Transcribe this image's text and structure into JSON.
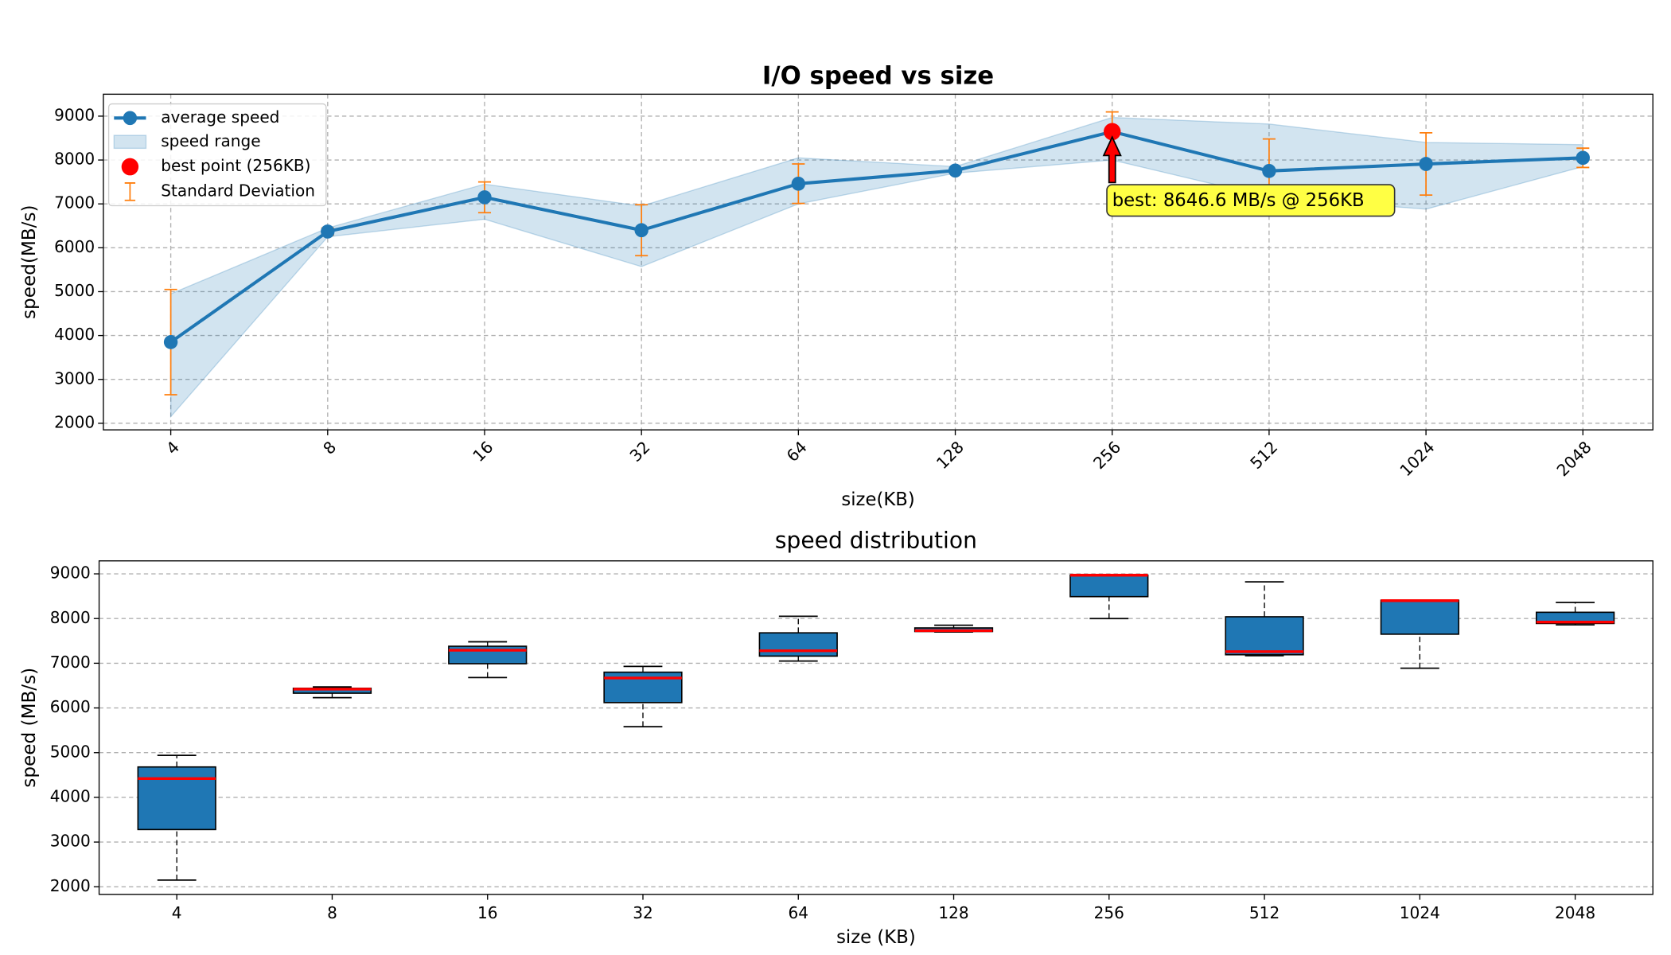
{
  "chart_data": [
    {
      "type": "line",
      "title": "I/O speed vs size",
      "x_label": "size(KB)",
      "y_label": "speed(MB/s)",
      "x": [
        4,
        8,
        16,
        32,
        64,
        128,
        256,
        512,
        1024,
        2048
      ],
      "xscale": "log2",
      "xlim": [
        2.97,
        2790
      ],
      "xticks": [
        4,
        8,
        16,
        32,
        64,
        128,
        256,
        512,
        1024,
        2048
      ],
      "ylim": [
        1850,
        9500
      ],
      "yticks": [
        2000,
        3000,
        4000,
        5000,
        6000,
        7000,
        8000,
        9000
      ],
      "grid": true,
      "legend": "upper left",
      "series": [
        {
          "name": "average speed",
          "color": "#1f77b4",
          "values": [
            3850,
            6370,
            7150,
            6400,
            7460,
            7760,
            8646.6,
            7750,
            7910,
            8050
          ]
        }
      ],
      "range": {
        "name": "speed range",
        "color": "#1f77b4",
        "lower": [
          2150,
          6250,
          6650,
          5570,
          7000,
          7700,
          8000,
          7150,
          6880,
          7850
        ],
        "upper": [
          4950,
          6450,
          7450,
          6950,
          8050,
          7850,
          8970,
          8820,
          8400,
          8350
        ]
      },
      "error": {
        "name": "Standard Deviation",
        "color": "#ff7f0e",
        "values": [
          1200,
          80,
          350,
          580,
          450,
          50,
          450,
          730,
          710,
          220
        ]
      },
      "best": {
        "name": "best point (256KB)",
        "color": "#ff0000",
        "x": 256,
        "y": 8646.6
      },
      "annotation": {
        "text": "best: 8646.6 MB/s @ 256KB",
        "color": "#ffff44"
      }
    },
    {
      "type": "box",
      "title": "speed distribution",
      "x_label": "size (KB)",
      "y_label": "speed (MB/s)",
      "categories": [
        "4",
        "8",
        "16",
        "32",
        "64",
        "128",
        "256",
        "512",
        "1024",
        "2048"
      ],
      "color": "#1f77b4",
      "median_color": "#ff0000",
      "ylim": [
        1830,
        9290
      ],
      "yticks": [
        2000,
        3000,
        4000,
        5000,
        6000,
        7000,
        8000,
        9000
      ],
      "grid": true,
      "boxes": [
        {
          "whislo": 2150,
          "q1": 3280,
          "med": 4420,
          "q3": 4680,
          "whishi": 4940
        },
        {
          "whislo": 6230,
          "q1": 6330,
          "med": 6420,
          "q3": 6440,
          "whishi": 6470
        },
        {
          "whislo": 6680,
          "q1": 6990,
          "med": 7290,
          "q3": 7380,
          "whishi": 7480
        },
        {
          "whislo": 5580,
          "q1": 6120,
          "med": 6670,
          "q3": 6800,
          "whishi": 6930
        },
        {
          "whislo": 7050,
          "q1": 7160,
          "med": 7280,
          "q3": 7680,
          "whishi": 8050
        },
        {
          "whislo": 7700,
          "q1": 7710,
          "med": 7730,
          "q3": 7790,
          "whishi": 7850
        },
        {
          "whislo": 8000,
          "q1": 8490,
          "med": 8970,
          "q3": 8970,
          "whishi": 8970
        },
        {
          "whislo": 7170,
          "q1": 7190,
          "med": 7260,
          "q3": 8040,
          "whishi": 8820
        },
        {
          "whislo": 6890,
          "q1": 7650,
          "med": 8400,
          "q3": 8410,
          "whishi": 8410
        },
        {
          "whislo": 7860,
          "q1": 7890,
          "med": 7920,
          "q3": 8140,
          "whishi": 8360
        }
      ]
    }
  ]
}
